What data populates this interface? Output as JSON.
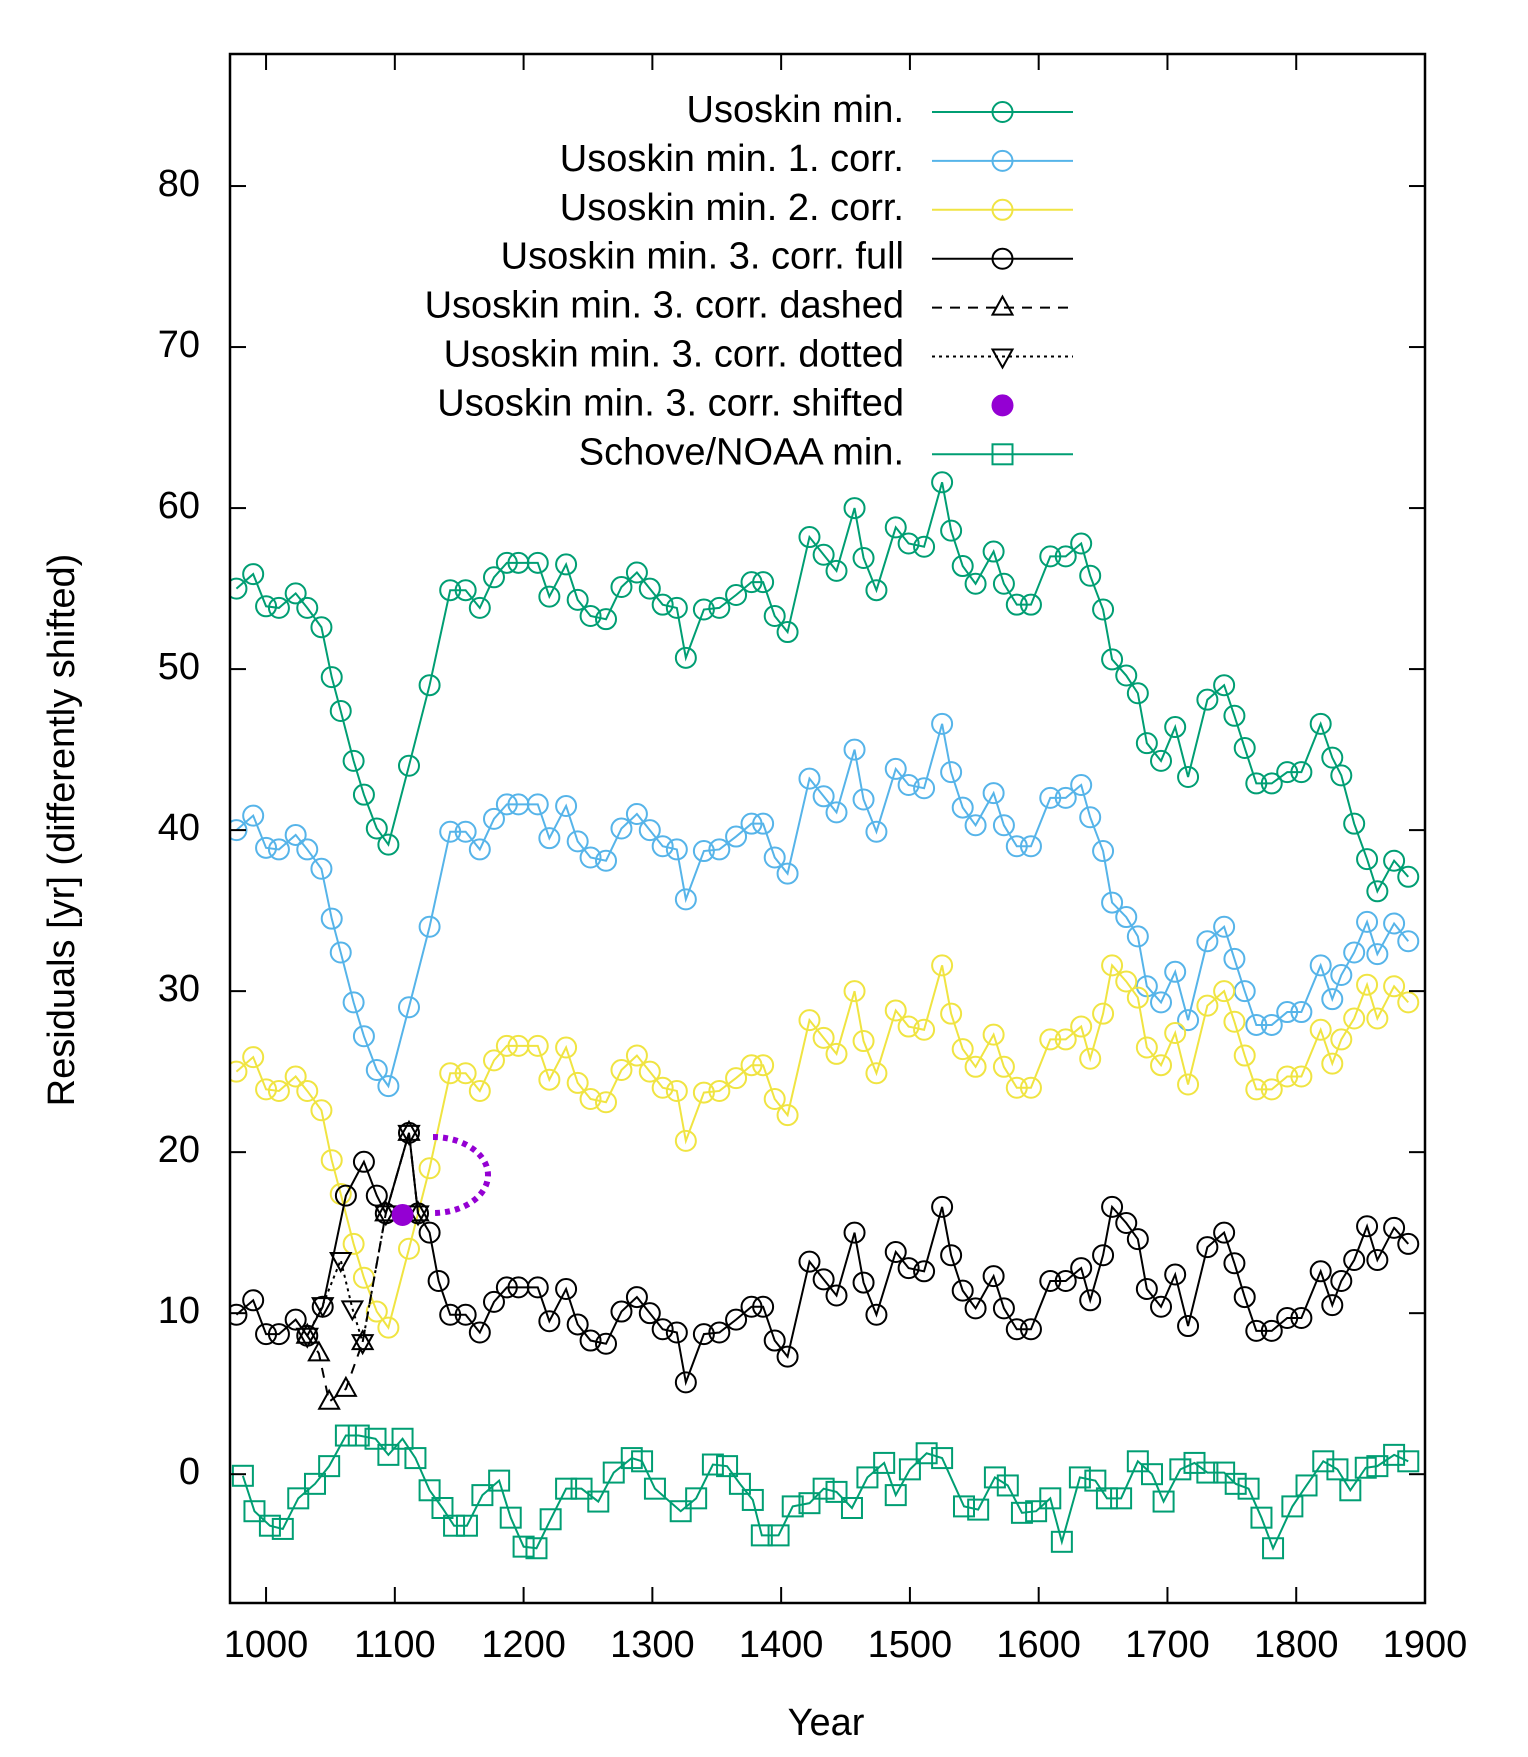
{
  "chart_data": {
    "type": "line",
    "xlabel": "Year",
    "ylabel": "Residuals [yr] (differently shifted)",
    "xlim": [
      972,
      1900
    ],
    "ylim": [
      -8,
      88.2
    ],
    "xticks": [
      1000,
      1100,
      1200,
      1300,
      1400,
      1500,
      1600,
      1700,
      1800,
      1900
    ],
    "yticks": [
      0,
      10,
      20,
      30,
      40,
      50,
      60,
      70,
      80
    ],
    "legend": "top-right",
    "series": [
      {
        "name": "Usoskin min.",
        "color": "#009e73",
        "marker": "circle",
        "dash": "solid",
        "x": [
          977,
          990,
          1000,
          1010,
          1023,
          1032,
          1043,
          1051,
          1058,
          1068,
          1076,
          1086,
          1095,
          1111,
          1127,
          1143,
          1155,
          1166,
          1177,
          1187,
          1196,
          1211,
          1220,
          1233,
          1242,
          1252,
          1264,
          1276,
          1288,
          1298,
          1308,
          1319,
          1326,
          1340,
          1352,
          1365,
          1377,
          1386,
          1395,
          1405,
          1422,
          1433,
          1443,
          1457,
          1464,
          1474,
          1489,
          1499,
          1511,
          1525,
          1532,
          1541,
          1551,
          1565,
          1573,
          1583,
          1594,
          1609,
          1621,
          1633,
          1640,
          1650,
          1657,
          1668,
          1677,
          1684,
          1695,
          1706,
          1716,
          1731,
          1744,
          1752,
          1760,
          1769,
          1781,
          1793,
          1804,
          1819,
          1828,
          1835,
          1845,
          1855,
          1863,
          1876,
          1887
        ],
        "values": [
          55.0,
          55.9,
          53.9,
          53.8,
          54.7,
          53.8,
          52.6,
          49.5,
          47.4,
          44.3,
          42.2,
          40.1,
          39.1,
          44.0,
          49.0,
          54.9,
          54.9,
          53.8,
          55.7,
          56.6,
          56.6,
          56.6,
          54.5,
          56.5,
          54.3,
          53.3,
          53.1,
          55.1,
          56.0,
          55.0,
          54.0,
          53.8,
          50.7,
          53.7,
          53.8,
          54.6,
          55.4,
          55.4,
          53.3,
          52.3,
          58.2,
          57.1,
          56.1,
          60.0,
          56.9,
          54.9,
          58.8,
          57.8,
          57.6,
          61.6,
          58.6,
          56.4,
          55.3,
          57.3,
          55.3,
          54.0,
          54.0,
          57.0,
          57.0,
          57.8,
          55.8,
          53.7,
          50.6,
          49.6,
          48.5,
          45.4,
          44.3,
          46.4,
          43.3,
          48.1,
          49.0,
          47.1,
          45.1,
          42.9,
          42.9,
          43.6,
          43.6,
          46.6,
          44.5,
          43.4,
          40.4,
          38.2,
          36.2,
          38.1,
          37.1
        ]
      },
      {
        "name": "Usoskin min. 1. corr.",
        "color": "#56b4e9",
        "marker": "circle",
        "dash": "solid",
        "x": [
          977,
          990,
          1000,
          1010,
          1023,
          1032,
          1043,
          1051,
          1058,
          1068,
          1076,
          1086,
          1095,
          1111,
          1127,
          1143,
          1155,
          1166,
          1177,
          1187,
          1196,
          1211,
          1220,
          1233,
          1242,
          1252,
          1264,
          1276,
          1288,
          1298,
          1308,
          1319,
          1326,
          1340,
          1352,
          1365,
          1377,
          1386,
          1395,
          1405,
          1422,
          1433,
          1443,
          1457,
          1464,
          1474,
          1489,
          1499,
          1511,
          1525,
          1532,
          1541,
          1551,
          1565,
          1573,
          1583,
          1594,
          1609,
          1621,
          1633,
          1640,
          1650,
          1657,
          1668,
          1677,
          1684,
          1695,
          1706,
          1716,
          1731,
          1744,
          1752,
          1760,
          1769,
          1781,
          1793,
          1804,
          1819,
          1828,
          1835,
          1845,
          1855,
          1863,
          1876,
          1887
        ],
        "values": [
          40.0,
          40.9,
          38.9,
          38.8,
          39.7,
          38.8,
          37.6,
          34.5,
          32.4,
          29.3,
          27.2,
          25.1,
          24.1,
          29.0,
          34.0,
          39.9,
          39.9,
          38.8,
          40.7,
          41.6,
          41.6,
          41.6,
          39.5,
          41.5,
          39.3,
          38.3,
          38.1,
          40.1,
          41.0,
          40.0,
          39.0,
          38.8,
          35.7,
          38.7,
          38.8,
          39.6,
          40.4,
          40.4,
          38.3,
          37.3,
          43.2,
          42.1,
          41.1,
          45.0,
          41.9,
          39.9,
          43.8,
          42.8,
          42.6,
          46.6,
          43.6,
          41.4,
          40.3,
          42.3,
          40.3,
          39.0,
          39.0,
          42.0,
          42.0,
          42.8,
          40.8,
          38.7,
          35.5,
          34.6,
          33.4,
          30.3,
          29.3,
          31.2,
          28.2,
          33.1,
          34.0,
          32.0,
          30.0,
          27.9,
          27.9,
          28.7,
          28.7,
          31.6,
          29.5,
          31.0,
          32.4,
          34.3,
          32.3,
          34.2,
          33.1
        ]
      },
      {
        "name": "Usoskin min. 2. corr.",
        "color": "#f0e442",
        "marker": "circle",
        "dash": "solid",
        "x": [
          977,
          990,
          1000,
          1010,
          1023,
          1032,
          1043,
          1051,
          1058,
          1068,
          1076,
          1086,
          1095,
          1111,
          1127,
          1143,
          1155,
          1166,
          1177,
          1187,
          1196,
          1211,
          1220,
          1233,
          1242,
          1252,
          1264,
          1276,
          1288,
          1298,
          1308,
          1319,
          1326,
          1340,
          1352,
          1365,
          1377,
          1386,
          1395,
          1405,
          1422,
          1433,
          1443,
          1457,
          1464,
          1474,
          1489,
          1499,
          1511,
          1525,
          1532,
          1541,
          1551,
          1565,
          1573,
          1583,
          1594,
          1609,
          1621,
          1633,
          1640,
          1650,
          1657,
          1668,
          1677,
          1684,
          1695,
          1706,
          1716,
          1731,
          1744,
          1752,
          1760,
          1769,
          1781,
          1793,
          1804,
          1819,
          1828,
          1835,
          1845,
          1855,
          1863,
          1876,
          1887
        ],
        "values": [
          25.0,
          25.9,
          23.9,
          23.8,
          24.7,
          23.8,
          22.6,
          19.5,
          17.4,
          14.3,
          12.2,
          10.1,
          9.1,
          14.0,
          19.0,
          24.9,
          24.9,
          23.8,
          25.7,
          26.6,
          26.6,
          26.6,
          24.5,
          26.5,
          24.3,
          23.3,
          23.1,
          25.1,
          26.0,
          25.0,
          24.0,
          23.8,
          20.7,
          23.7,
          23.8,
          24.6,
          25.4,
          25.4,
          23.3,
          22.3,
          28.2,
          27.1,
          26.1,
          30.0,
          26.9,
          24.9,
          28.8,
          27.8,
          27.6,
          31.6,
          28.6,
          26.4,
          25.3,
          27.3,
          25.3,
          24.0,
          24.0,
          27.0,
          27.0,
          27.8,
          25.8,
          28.6,
          31.6,
          30.6,
          29.6,
          26.5,
          25.4,
          27.4,
          24.2,
          29.1,
          30.0,
          28.1,
          26.0,
          23.9,
          23.9,
          24.7,
          24.7,
          27.6,
          25.5,
          27.0,
          28.3,
          30.4,
          28.3,
          30.3,
          29.3
        ]
      },
      {
        "name": "Usoskin min. 3. corr. full",
        "color": "#000000",
        "marker": "circle",
        "dash": "solid",
        "x": [
          977,
          990,
          1000,
          1010,
          1023,
          1032,
          1044,
          1062,
          1076,
          1086,
          1093,
          1111,
          1118,
          1127,
          1134,
          1143,
          1155,
          1166,
          1177,
          1187,
          1196,
          1211,
          1220,
          1233,
          1242,
          1252,
          1264,
          1276,
          1288,
          1298,
          1308,
          1319,
          1326,
          1340,
          1352,
          1365,
          1377,
          1386,
          1395,
          1405,
          1422,
          1433,
          1443,
          1457,
          1464,
          1474,
          1489,
          1499,
          1511,
          1525,
          1532,
          1541,
          1551,
          1565,
          1573,
          1583,
          1594,
          1609,
          1621,
          1633,
          1640,
          1650,
          1657,
          1668,
          1677,
          1684,
          1695,
          1706,
          1716,
          1731,
          1744,
          1752,
          1760,
          1769,
          1781,
          1793,
          1804,
          1819,
          1828,
          1835,
          1845,
          1855,
          1863,
          1876,
          1887
        ],
        "values": [
          9.9,
          10.8,
          8.7,
          8.7,
          9.6,
          8.6,
          10.4,
          17.3,
          19.4,
          17.3,
          16.2,
          21.2,
          16.2,
          15.0,
          12.0,
          9.9,
          9.9,
          8.8,
          10.7,
          11.6,
          11.6,
          11.6,
          9.5,
          11.5,
          9.3,
          8.3,
          8.1,
          10.1,
          11.0,
          10.0,
          9.0,
          8.8,
          5.7,
          8.7,
          8.8,
          9.6,
          10.4,
          10.4,
          8.3,
          7.3,
          13.2,
          12.1,
          11.1,
          15.0,
          11.9,
          9.9,
          13.8,
          12.8,
          12.6,
          16.6,
          13.6,
          11.4,
          10.3,
          12.3,
          10.3,
          9.0,
          9.0,
          12.0,
          12.0,
          12.8,
          10.8,
          13.6,
          16.6,
          15.6,
          14.6,
          11.5,
          10.4,
          12.4,
          9.2,
          14.1,
          15.0,
          13.1,
          11.0,
          8.9,
          8.9,
          9.7,
          9.7,
          12.6,
          10.5,
          12.0,
          13.3,
          15.4,
          13.3,
          15.3,
          14.3
        ]
      },
      {
        "name": "Usoskin min. 3. corr. dashed",
        "color": "#000000",
        "marker": "triangle-up",
        "dash": "dashed",
        "x": [
          1032,
          1041,
          1049,
          1062,
          1075,
          1093,
          1111,
          1118
        ],
        "values": [
          8.6,
          7.5,
          4.5,
          5.3,
          8.2,
          16.2,
          21.2,
          16.2
        ]
      },
      {
        "name": "Usoskin min. 3. corr. dotted",
        "color": "#000000",
        "marker": "triangle-down",
        "dash": "dotted",
        "x": [
          1032,
          1044,
          1058,
          1067,
          1075,
          1093,
          1111,
          1118
        ],
        "values": [
          8.6,
          10.5,
          13.3,
          10.3,
          8.2,
          16.2,
          21.2,
          16.2
        ]
      },
      {
        "name": "Usoskin min. 3. corr. shifted",
        "color": "#9400d3",
        "marker": "filled-circle",
        "dash": "none",
        "x": [
          1106
        ],
        "values": [
          16.1
        ]
      },
      {
        "name": "Schove/NOAA min.",
        "color": "#009e73",
        "marker": "square",
        "dash": "solid",
        "x": [
          982,
          991,
          1003,
          1013,
          1025,
          1038,
          1049,
          1062,
          1072,
          1085,
          1095,
          1106,
          1116,
          1127,
          1137,
          1146,
          1156,
          1168,
          1181,
          1190,
          1200,
          1210,
          1221,
          1233,
          1245,
          1258,
          1270,
          1284,
          1292,
          1302,
          1322,
          1334,
          1347,
          1358,
          1368,
          1378,
          1385,
          1398,
          1409,
          1422,
          1433,
          1443,
          1455,
          1467,
          1480,
          1489,
          1500,
          1513,
          1525,
          1542,
          1553,
          1566,
          1576,
          1587,
          1598,
          1609,
          1618,
          1632,
          1644,
          1653,
          1664,
          1677,
          1688,
          1697,
          1710,
          1721,
          1731,
          1744,
          1753,
          1763,
          1773,
          1782,
          1797,
          1808,
          1821,
          1832,
          1842,
          1854,
          1863,
          1876,
          1887
        ],
        "values": [
          -0.1,
          -2.3,
          -3.2,
          -3.4,
          -1.5,
          -0.6,
          0.5,
          2.4,
          2.4,
          2.2,
          1.2,
          2.2,
          1.0,
          -1.0,
          -2.1,
          -3.2,
          -3.2,
          -1.3,
          -0.4,
          -2.7,
          -4.5,
          -4.6,
          -2.8,
          -0.9,
          -0.9,
          -1.7,
          0.1,
          1.0,
          0.8,
          -0.9,
          -2.3,
          -1.5,
          0.6,
          0.5,
          -0.6,
          -1.6,
          -3.8,
          -3.8,
          -2.0,
          -1.8,
          -0.9,
          -1.1,
          -2.1,
          -0.2,
          0.7,
          -1.3,
          0.3,
          1.3,
          1.0,
          -2.0,
          -2.2,
          -0.2,
          -0.7,
          -2.4,
          -2.3,
          -1.5,
          -4.2,
          -0.2,
          -0.4,
          -1.5,
          -1.5,
          0.8,
          0,
          -1.7,
          0.3,
          0.7,
          0.1,
          0.1,
          -0.6,
          -0.9,
          -2.7,
          -4.6,
          -2.0,
          -0.7,
          0.8,
          0.3,
          -1.0,
          0.4,
          0.5,
          1.2,
          0.8
        ]
      }
    ]
  }
}
